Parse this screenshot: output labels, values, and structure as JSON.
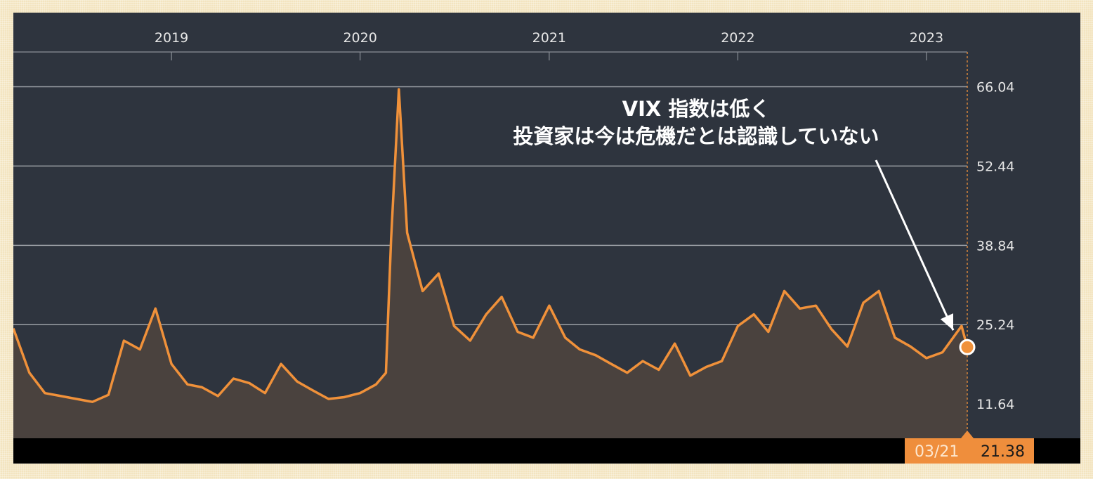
{
  "chart_data": {
    "type": "area",
    "title": "",
    "xlabel": "",
    "ylabel": "",
    "x_ticks": [
      "2019",
      "2020",
      "2021",
      "2022",
      "2023"
    ],
    "y_ticks": [
      11.64,
      25.24,
      38.84,
      52.44,
      66.04
    ],
    "y_tick_labels": [
      "11.64",
      "25.24",
      "38.84",
      "52.44",
      "66.04"
    ],
    "ylim": [
      6.0,
      72.0
    ],
    "xlim": [
      "2018-03",
      "2023-03-21"
    ],
    "grid": "horizontal",
    "series": [
      {
        "x": [
          "2018-03",
          "2018-04",
          "2018-05",
          "2018-06",
          "2018-07",
          "2018-08",
          "2018-09",
          "2018-10",
          "2018-11",
          "2018-12",
          "2019-01",
          "2019-02",
          "2019-03",
          "2019-04",
          "2019-05",
          "2019-06",
          "2019-07",
          "2019-08",
          "2019-09",
          "2019-10",
          "2019-11",
          "2019-12",
          "2020-01",
          "2020-02",
          "2020-02-20",
          "2020-03",
          "2020-03-16",
          "2020-04",
          "2020-05",
          "2020-06",
          "2020-07",
          "2020-08",
          "2020-09",
          "2020-10",
          "2020-11",
          "2020-12",
          "2021-01",
          "2021-02",
          "2021-03",
          "2021-04",
          "2021-05",
          "2021-06",
          "2021-07",
          "2021-08",
          "2021-09",
          "2021-10",
          "2021-11",
          "2021-12",
          "2022-01",
          "2022-02",
          "2022-03",
          "2022-04",
          "2022-05",
          "2022-06",
          "2022-07",
          "2022-08",
          "2022-09",
          "2022-10",
          "2022-11",
          "2022-12",
          "2023-01",
          "2023-02",
          "2023-03-10",
          "2023-03-21"
        ],
        "values": [
          24.6,
          17.0,
          13.5,
          13.0,
          12.5,
          12.0,
          13.2,
          22.5,
          21.0,
          28.0,
          18.5,
          15.0,
          14.5,
          13.0,
          16.0,
          15.2,
          13.5,
          18.5,
          15.5,
          14.0,
          12.5,
          12.8,
          13.5,
          15.0,
          17.0,
          40.0,
          65.6,
          41.0,
          31.0,
          34.0,
          25.0,
          22.5,
          27.0,
          30.0,
          24.0,
          23.0,
          28.5,
          23.0,
          21.0,
          20.0,
          18.5,
          17.0,
          19.0,
          17.5,
          22.0,
          16.5,
          18.0,
          19.0,
          25.0,
          27.0,
          24.0,
          31.0,
          28.0,
          28.5,
          24.5,
          21.5,
          29.0,
          31.0,
          23.0,
          21.5,
          19.5,
          20.5,
          25.0,
          21.38
        ]
      }
    ],
    "annotation": {
      "line1": "VIX 指数は低く",
      "line2": "投資家は今は危機だとは認識していない"
    },
    "readout": {
      "date": "03/21",
      "value": "21.38"
    }
  },
  "colors": {
    "line": "#f0913a",
    "area": "#4a423e",
    "panel": "#2e343e",
    "readout_bg": "#ef8e3c"
  }
}
